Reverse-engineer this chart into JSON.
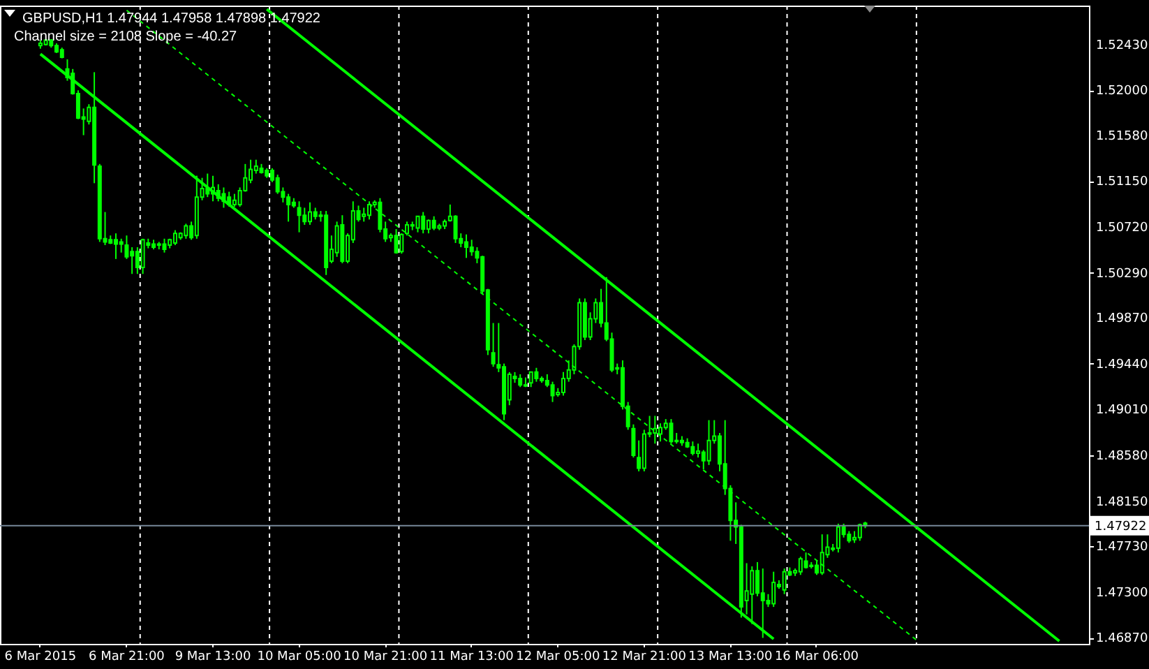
{
  "chart_data": {
    "type": "candlestick",
    "title": "GBPUSD,H1 1.47944 1.47958 1.47898 1.47922",
    "subtitle": "Channel size = 2108 Slope = -40.27",
    "color": "#00ff00",
    "categories": [
      "6 Mar 2015",
      null,
      null,
      null,
      null,
      null,
      null,
      null,
      null,
      null,
      null,
      null,
      null,
      null,
      null,
      null,
      "6 Mar 21:00",
      null,
      null,
      null,
      null,
      null,
      null,
      null,
      null,
      null,
      null,
      null,
      null,
      null,
      null,
      null,
      "9 Mar 13:00",
      null,
      null,
      null,
      null,
      null,
      null,
      null,
      null,
      null,
      null,
      null,
      null,
      null,
      null,
      null,
      "10 Mar 05:00",
      null,
      null,
      null,
      null,
      null,
      null,
      null,
      null,
      null,
      null,
      null,
      null,
      null,
      null,
      null,
      "10 Mar 21:00",
      null,
      null,
      null,
      null,
      null,
      null,
      null,
      null,
      null,
      null,
      null,
      null,
      null,
      null,
      null,
      "11 Mar 13:00",
      null,
      null,
      null,
      null,
      null,
      null,
      null,
      null,
      null,
      null,
      null,
      null,
      null,
      null,
      null,
      "12 Mar 05:00",
      null,
      null,
      null,
      null,
      null,
      null,
      null,
      null,
      null,
      null,
      null,
      null,
      null,
      null,
      null,
      "12 Mar 21:00",
      null,
      null,
      null,
      null,
      null,
      null,
      null,
      null,
      null,
      null,
      null,
      null,
      null,
      null,
      null,
      "13 Mar 13:00",
      null,
      null,
      null,
      null,
      null,
      null,
      null,
      null,
      null,
      null,
      null,
      null,
      null,
      null,
      null,
      "16 Mar 06:00",
      null,
      null,
      null,
      null,
      null,
      null,
      null,
      null,
      null,
      null,
      null,
      null,
      null,
      null,
      null,
      null,
      null,
      null,
      null,
      null,
      null,
      null,
      null,
      null,
      null,
      null,
      null,
      null,
      null,
      null,
      null,
      null,
      null,
      null,
      null,
      null,
      null,
      null,
      null,
      null,
      null,
      null,
      null,
      null,
      null,
      null,
      null,
      null,
      null,
      null
    ],
    "ohlc": [
      [
        1.5242,
        1.5247,
        1.5239,
        1.5244
      ],
      [
        1.5243,
        1.5248,
        1.5242,
        1.5247
      ],
      [
        1.5247,
        1.5248,
        1.524,
        1.5242
      ],
      [
        1.5242,
        1.5244,
        1.5235,
        1.5236
      ],
      [
        1.5238,
        1.524,
        1.523,
        1.5231
      ],
      [
        1.522,
        1.5229,
        1.5209,
        1.5212
      ],
      [
        1.5216,
        1.522,
        1.5196,
        1.5197
      ],
      [
        1.5197,
        1.52,
        1.5173,
        1.5174
      ],
      [
        1.5175,
        1.5183,
        1.5158,
        1.5173
      ],
      [
        1.5171,
        1.5187,
        1.5168,
        1.5184
      ],
      [
        1.5184,
        1.5217,
        1.5113,
        1.513
      ],
      [
        1.5129,
        1.5131,
        1.5058,
        1.5061
      ],
      [
        1.5061,
        1.5086,
        1.5055,
        1.5058
      ],
      [
        1.506,
        1.5064,
        1.5056,
        1.5057
      ],
      [
        1.506,
        1.5066,
        1.5042,
        1.5056
      ],
      [
        1.5058,
        1.5061,
        1.5048,
        1.5056
      ],
      [
        1.5055,
        1.5064,
        1.5042,
        1.5044
      ],
      [
        1.5049,
        1.5053,
        1.5028,
        1.5045
      ],
      [
        1.5049,
        1.5053,
        1.5028,
        1.5034
      ],
      [
        1.5034,
        1.5061,
        1.5028,
        1.506
      ],
      [
        1.5057,
        1.5061,
        1.5052,
        1.5055
      ],
      [
        1.5056,
        1.506,
        1.5051,
        1.5053
      ],
      [
        1.5056,
        1.5058,
        1.5051,
        1.5055
      ],
      [
        1.5056,
        1.5061,
        1.5048,
        1.5051
      ],
      [
        1.5055,
        1.5061,
        1.5052,
        1.506
      ],
      [
        1.5057,
        1.5069,
        1.5055,
        1.5066
      ],
      [
        1.5062,
        1.5067,
        1.506,
        1.5066
      ],
      [
        1.5064,
        1.5075,
        1.5061,
        1.5073
      ],
      [
        1.5073,
        1.5077,
        1.506,
        1.5062
      ],
      [
        1.5064,
        1.512,
        1.5061,
        1.51
      ],
      [
        1.51,
        1.5118,
        1.5097,
        1.5108
      ],
      [
        1.5108,
        1.5122,
        1.51,
        1.5103
      ],
      [
        1.5103,
        1.512,
        1.5096,
        1.5109
      ],
      [
        1.5106,
        1.5112,
        1.5096,
        1.5099
      ],
      [
        1.5103,
        1.5109,
        1.509,
        1.5096
      ],
      [
        1.51,
        1.5105,
        1.5091,
        1.5093
      ],
      [
        1.5093,
        1.5103,
        1.5091,
        1.5097
      ],
      [
        1.5093,
        1.5109,
        1.5091,
        1.5106
      ],
      [
        1.5106,
        1.5131,
        1.5105,
        1.5118
      ],
      [
        1.5116,
        1.5135,
        1.5113,
        1.5126
      ],
      [
        1.5125,
        1.5135,
        1.5122,
        1.5129
      ],
      [
        1.5127,
        1.5131,
        1.5122,
        1.5123
      ],
      [
        1.5125,
        1.5127,
        1.5118,
        1.512
      ],
      [
        1.5125,
        1.5127,
        1.5114,
        1.5116
      ],
      [
        1.5118,
        1.5121,
        1.5103,
        1.5105
      ],
      [
        1.5105,
        1.5109,
        1.5095,
        1.51
      ],
      [
        1.51,
        1.5103,
        1.5077,
        1.5093
      ],
      [
        1.5095,
        1.5099,
        1.509,
        1.5092
      ],
      [
        1.509,
        1.5096,
        1.5067,
        1.5083
      ],
      [
        1.5083,
        1.509,
        1.5074,
        1.5077
      ],
      [
        1.5077,
        1.5095,
        1.5074,
        1.5086
      ],
      [
        1.5086,
        1.509,
        1.5079,
        1.5082
      ],
      [
        1.5082,
        1.5087,
        1.5077,
        1.5083
      ],
      [
        1.5083,
        1.5087,
        1.5027,
        1.5034
      ],
      [
        1.504,
        1.5064,
        1.5038,
        1.5051
      ],
      [
        1.5048,
        1.5077,
        1.5044,
        1.5073
      ],
      [
        1.5074,
        1.5083,
        1.5038,
        1.504
      ],
      [
        1.504,
        1.5066,
        1.5038,
        1.5064
      ],
      [
        1.506,
        1.5096,
        1.5057,
        1.5087
      ],
      [
        1.5087,
        1.5092,
        1.5077,
        1.5079
      ],
      [
        1.5082,
        1.509,
        1.5077,
        1.5084
      ],
      [
        1.5083,
        1.5096,
        1.5079,
        1.5093
      ],
      [
        1.5093,
        1.5097,
        1.509,
        1.5095
      ],
      [
        1.5095,
        1.5099,
        1.5067,
        1.507
      ],
      [
        1.507,
        1.5077,
        1.5058,
        1.5061
      ],
      [
        1.5062,
        1.5066,
        1.5058,
        1.5064
      ],
      [
        1.5064,
        1.507,
        1.5047,
        1.5048
      ],
      [
        1.5049,
        1.5066,
        1.5047,
        1.5065
      ],
      [
        1.5066,
        1.5077,
        1.5064,
        1.5074
      ],
      [
        1.5074,
        1.5077,
        1.5069,
        1.5073
      ],
      [
        1.5071,
        1.5082,
        1.5067,
        1.5082
      ],
      [
        1.5082,
        1.5086,
        1.5066,
        1.507
      ],
      [
        1.507,
        1.5079,
        1.5066,
        1.5078
      ],
      [
        1.5078,
        1.5082,
        1.5069,
        1.5071
      ],
      [
        1.5071,
        1.5075,
        1.5069,
        1.5073
      ],
      [
        1.5073,
        1.5079,
        1.507,
        1.5077
      ],
      [
        1.5078,
        1.5093,
        1.5077,
        1.5082
      ],
      [
        1.5082,
        1.5083,
        1.5057,
        1.5061
      ],
      [
        1.5061,
        1.5066,
        1.5053,
        1.5057
      ],
      [
        1.5058,
        1.5065,
        1.5043,
        1.5053
      ],
      [
        1.5053,
        1.506,
        1.5045,
        1.5049
      ],
      [
        1.5049,
        1.5053,
        1.5038,
        1.5043
      ],
      [
        1.5044,
        1.5045,
        1.5009,
        1.5012
      ],
      [
        1.5013,
        1.5014,
        1.4952,
        1.4957
      ],
      [
        1.4954,
        1.4982,
        1.4941,
        1.4944
      ],
      [
        1.4943,
        1.4982,
        1.4936,
        1.494
      ],
      [
        1.4941,
        1.4944,
        1.4891,
        1.4897
      ],
      [
        1.491,
        1.4936,
        1.4905,
        1.4934
      ],
      [
        1.4932,
        1.4936,
        1.4926,
        1.493
      ],
      [
        1.493,
        1.4934,
        1.4922,
        1.4924
      ],
      [
        1.4924,
        1.4931,
        1.4922,
        1.4923
      ],
      [
        1.4926,
        1.4936,
        1.4922,
        1.4936
      ],
      [
        1.4936,
        1.494,
        1.4927,
        1.493
      ],
      [
        1.493,
        1.4932,
        1.4926,
        1.4928
      ],
      [
        1.4928,
        1.4934,
        1.4922,
        1.4924
      ],
      [
        1.4924,
        1.4927,
        1.4908,
        1.4914
      ],
      [
        1.4915,
        1.4921,
        1.4913,
        1.4917
      ],
      [
        1.4917,
        1.4936,
        1.4914,
        1.493
      ],
      [
        1.493,
        1.4947,
        1.4927,
        1.4938
      ],
      [
        1.4938,
        1.4962,
        1.4934,
        1.496
      ],
      [
        1.496,
        1.5005,
        1.4957,
        1.5001
      ],
      [
        1.5001,
        1.5005,
        1.4966,
        1.4969
      ],
      [
        1.4969,
        1.4992,
        1.4966,
        1.4986
      ],
      [
        1.4986,
        1.5005,
        1.4982,
        1.5001
      ],
      [
        1.5001,
        1.5014,
        1.4978,
        1.4982
      ],
      [
        1.4982,
        1.5025,
        1.4965,
        1.4967
      ],
      [
        1.4967,
        1.4973,
        1.4936,
        1.4938
      ],
      [
        1.4939,
        1.4944,
        1.4934,
        1.494
      ],
      [
        1.494,
        1.4947,
        1.4901,
        1.4904
      ],
      [
        1.4904,
        1.4908,
        1.4882,
        1.4885
      ],
      [
        1.4883,
        1.4887,
        1.4856,
        1.4858
      ],
      [
        1.4856,
        1.4872,
        1.4843,
        1.4846
      ],
      [
        1.4846,
        1.4882,
        1.4843,
        1.4878
      ],
      [
        1.4878,
        1.4895,
        1.4875,
        1.4879
      ],
      [
        1.4879,
        1.4895,
        1.4869,
        1.4883
      ],
      [
        1.4878,
        1.4888,
        1.4871,
        1.4884
      ],
      [
        1.4884,
        1.4892,
        1.4882,
        1.4888
      ],
      [
        1.4888,
        1.4892,
        1.4869,
        1.4871
      ],
      [
        1.4871,
        1.4879,
        1.4869,
        1.4872
      ],
      [
        1.4872,
        1.4876,
        1.4867,
        1.487
      ],
      [
        1.487,
        1.4874,
        1.4865,
        1.4866
      ],
      [
        1.4866,
        1.4871,
        1.4858,
        1.486
      ],
      [
        1.486,
        1.4869,
        1.4856,
        1.4862
      ],
      [
        1.4861,
        1.4863,
        1.4845,
        1.4853
      ],
      [
        1.4853,
        1.4891,
        1.4849,
        1.4872
      ],
      [
        1.4872,
        1.4891,
        1.4869,
        1.4876
      ],
      [
        1.4876,
        1.4879,
        1.4843,
        1.485
      ],
      [
        1.485,
        1.4891,
        1.4821,
        1.4827
      ],
      [
        1.4827,
        1.483,
        1.4778,
        1.4797
      ],
      [
        1.4797,
        1.4814,
        1.4775,
        1.4791
      ],
      [
        1.4791,
        1.4793,
        1.4706,
        1.4716
      ],
      [
        1.4722,
        1.4757,
        1.4709,
        1.4731
      ],
      [
        1.4728,
        1.4754,
        1.47,
        1.475
      ],
      [
        1.475,
        1.4758,
        1.4726,
        1.4729
      ],
      [
        1.4729,
        1.4752,
        1.4687,
        1.4722
      ],
      [
        1.4722,
        1.4728,
        1.4716,
        1.4719
      ],
      [
        1.4719,
        1.4749,
        1.4716,
        1.4739
      ],
      [
        1.4737,
        1.4741,
        1.4733,
        1.4735
      ],
      [
        1.4732,
        1.4752,
        1.4728,
        1.4749
      ],
      [
        1.4749,
        1.4753,
        1.4745,
        1.4746
      ],
      [
        1.4748,
        1.4752,
        1.4745,
        1.475
      ],
      [
        1.4749,
        1.4763,
        1.4746,
        1.4761
      ],
      [
        1.4759,
        1.4767,
        1.4752,
        1.4753
      ],
      [
        1.4754,
        1.4758,
        1.4752,
        1.4755
      ],
      [
        1.4755,
        1.4759,
        1.4746,
        1.4748
      ],
      [
        1.4748,
        1.4784,
        1.4746,
        1.4767
      ],
      [
        1.4765,
        1.4784,
        1.4762,
        1.4772
      ],
      [
        1.4771,
        1.4775,
        1.4768,
        1.477
      ],
      [
        1.4771,
        1.4794,
        1.4767,
        1.4791
      ],
      [
        1.4791,
        1.4794,
        1.4781,
        1.4784
      ],
      [
        1.4784,
        1.4787,
        1.4776,
        1.4778
      ],
      [
        1.4779,
        1.4787,
        1.4776,
        1.4781
      ],
      [
        1.4781,
        1.4794,
        1.4778,
        1.4793
      ],
      [
        1.47944,
        1.47958,
        1.47898,
        1.47922
      ],
      null,
      null,
      null,
      null,
      null,
      null,
      null,
      null,
      null,
      null,
      null,
      null,
      null,
      null,
      null,
      null,
      null,
      null,
      null,
      null,
      null,
      null,
      null,
      null,
      null,
      null,
      null,
      null,
      null,
      null,
      null,
      null,
      null,
      null,
      null,
      null,
      null,
      null,
      null,
      null,
      null
    ],
    "series": [
      {
        "type": "line",
        "color": "#00ff00",
        "values": [
          1.5234,
          null,
          null,
          null,
          null,
          null,
          null,
          null,
          null,
          null,
          null,
          null,
          null,
          null,
          null,
          null,
          null,
          null,
          null,
          null,
          null,
          null,
          null,
          null,
          null,
          null,
          null,
          null,
          null,
          null,
          null,
          null,
          null,
          null,
          null,
          null,
          null,
          null,
          null,
          null,
          null,
          null,
          null,
          null,
          null,
          null,
          null,
          null,
          null,
          null,
          null,
          null,
          null,
          null,
          null,
          null,
          null,
          null,
          null,
          null,
          null,
          null,
          null,
          null,
          null,
          null,
          null,
          null,
          null,
          null,
          null,
          null,
          null,
          null,
          null,
          null,
          null,
          null,
          null,
          null,
          null,
          null,
          null,
          null,
          null,
          null,
          null,
          null,
          null,
          null,
          null,
          null,
          null,
          null,
          null,
          null,
          null,
          null,
          null,
          null,
          null,
          null,
          null,
          null,
          null,
          null,
          null,
          null,
          null,
          null,
          null,
          null,
          null,
          null,
          null,
          null,
          null,
          null,
          null,
          null,
          null,
          null,
          null,
          null,
          null,
          null,
          null,
          null,
          null,
          null,
          null,
          null,
          null,
          null,
          null,
          null,
          1.4686,
          null,
          null,
          null,
          null,
          null,
          null,
          null,
          null,
          null,
          null,
          null,
          null,
          null,
          null,
          null,
          null,
          null,
          null,
          null,
          null,
          null,
          null,
          null,
          null,
          null,
          null,
          null,
          null,
          null,
          null,
          null,
          null,
          null,
          null,
          null,
          null,
          null,
          null,
          null,
          null,
          null,
          null,
          null,
          null,
          null,
          null,
          null,
          null,
          null,
          null,
          null,
          null,
          null,
          null,
          null,
          null,
          null,
          null
        ]
      },
      {
        "type": "line",
        "color": "#00ff00",
        "values": [
          null,
          null,
          null,
          null,
          null,
          null,
          null,
          null,
          null,
          null,
          null,
          null,
          null,
          null,
          null,
          null,
          null,
          null,
          null,
          null,
          null,
          null,
          null,
          null,
          null,
          null,
          null,
          null,
          null,
          null,
          null,
          null,
          null,
          null,
          null,
          null,
          null,
          null,
          null,
          null,
          null,
          null,
          1.5276,
          null,
          null,
          null,
          null,
          null,
          null,
          null,
          null,
          null,
          null,
          null,
          null,
          null,
          null,
          null,
          null,
          null,
          null,
          null,
          null,
          null,
          null,
          null,
          null,
          null,
          null,
          null,
          null,
          null,
          null,
          null,
          null,
          null,
          null,
          null,
          null,
          null,
          null,
          null,
          null,
          null,
          null,
          null,
          null,
          null,
          null,
          null,
          null,
          null,
          null,
          null,
          null,
          null,
          null,
          null,
          null,
          null,
          null,
          null,
          null,
          null,
          null,
          null,
          null,
          null,
          null,
          null,
          null,
          null,
          null,
          null,
          null,
          null,
          null,
          null,
          null,
          null,
          null,
          null,
          null,
          null,
          null,
          null,
          null,
          null,
          null,
          null,
          null,
          null,
          null,
          null,
          null,
          null,
          null,
          null,
          null,
          null,
          null,
          null,
          null,
          null,
          null,
          null,
          null,
          null,
          null,
          null,
          null,
          null,
          null,
          null,
          null,
          null,
          null,
          null,
          null,
          null,
          null,
          null,
          null,
          null,
          null,
          null,
          null,
          null,
          null,
          null,
          null,
          null,
          null,
          null,
          null,
          null,
          null,
          null,
          null,
          null,
          null,
          null,
          null,
          null,
          null,
          null,
          null,
          null,
          null,
          1.4684,
          null,
          null,
          null,
          null,
          null
        ]
      },
      {
        "type": "line",
        "color": "#00ff00",
        "line_style": "dashed",
        "values": [
          null,
          null,
          null,
          null,
          null,
          null,
          null,
          null,
          null,
          null,
          null,
          null,
          null,
          null,
          null,
          null,
          1.5275,
          null,
          null,
          null,
          null,
          null,
          null,
          null,
          null,
          null,
          null,
          null,
          null,
          null,
          null,
          null,
          null,
          null,
          null,
          null,
          null,
          null,
          null,
          null,
          null,
          null,
          null,
          null,
          null,
          null,
          null,
          null,
          null,
          null,
          null,
          null,
          null,
          null,
          null,
          null,
          null,
          null,
          null,
          null,
          null,
          null,
          null,
          null,
          null,
          null,
          null,
          null,
          null,
          null,
          null,
          null,
          null,
          null,
          null,
          null,
          null,
          null,
          null,
          null,
          null,
          null,
          null,
          null,
          null,
          null,
          null,
          null,
          null,
          null,
          null,
          null,
          null,
          null,
          null,
          null,
          null,
          null,
          null,
          null,
          null,
          null,
          null,
          null,
          null,
          null,
          null,
          null,
          null,
          null,
          null,
          null,
          null,
          null,
          null,
          null,
          null,
          null,
          null,
          null,
          null,
          null,
          null,
          null,
          null,
          null,
          null,
          null,
          null,
          null,
          null,
          null,
          null,
          null,
          null,
          null,
          null,
          null,
          null,
          null,
          null,
          null,
          null,
          null,
          null,
          null,
          null,
          null,
          null,
          null,
          null,
          null,
          null,
          null,
          null,
          null,
          null,
          null,
          null,
          null,
          null,
          null,
          null,
          1.4683,
          null,
          null,
          null,
          null,
          null,
          null,
          null,
          null,
          null,
          null,
          null,
          null,
          null,
          null,
          null,
          null,
          null,
          null,
          null,
          null,
          null,
          null,
          null,
          null,
          null,
          null,
          null,
          null,
          null,
          null,
          null
        ]
      }
    ],
    "ylim": [
      1.46814,
      1.52794
    ],
    "yticks": [
      {
        "value": 1.5243,
        "label": "1.52430"
      },
      {
        "value": 1.52,
        "label": "1.52000"
      },
      {
        "value": 1.5158,
        "label": "1.51580"
      },
      {
        "value": 1.5115,
        "label": "1.51150"
      },
      {
        "value": 1.5072,
        "label": "1.50720"
      },
      {
        "value": 1.5029,
        "label": "1.50290"
      },
      {
        "value": 1.4987,
        "label": "1.49870"
      },
      {
        "value": 1.4944,
        "label": "1.49440"
      },
      {
        "value": 1.4901,
        "label": "1.49010"
      },
      {
        "value": 1.4858,
        "label": "1.48580"
      },
      {
        "value": 1.4815,
        "label": "1.48150"
      },
      {
        "value": 1.4773,
        "label": "1.47730"
      },
      {
        "value": 1.473,
        "label": "1.47300"
      },
      {
        "value": 1.4687,
        "label": "1.46870"
      }
    ],
    "ref_lines": [
      {
        "axis": "y",
        "value": 1.47922,
        "label": "1.47922",
        "color": "#778899"
      }
    ]
  }
}
